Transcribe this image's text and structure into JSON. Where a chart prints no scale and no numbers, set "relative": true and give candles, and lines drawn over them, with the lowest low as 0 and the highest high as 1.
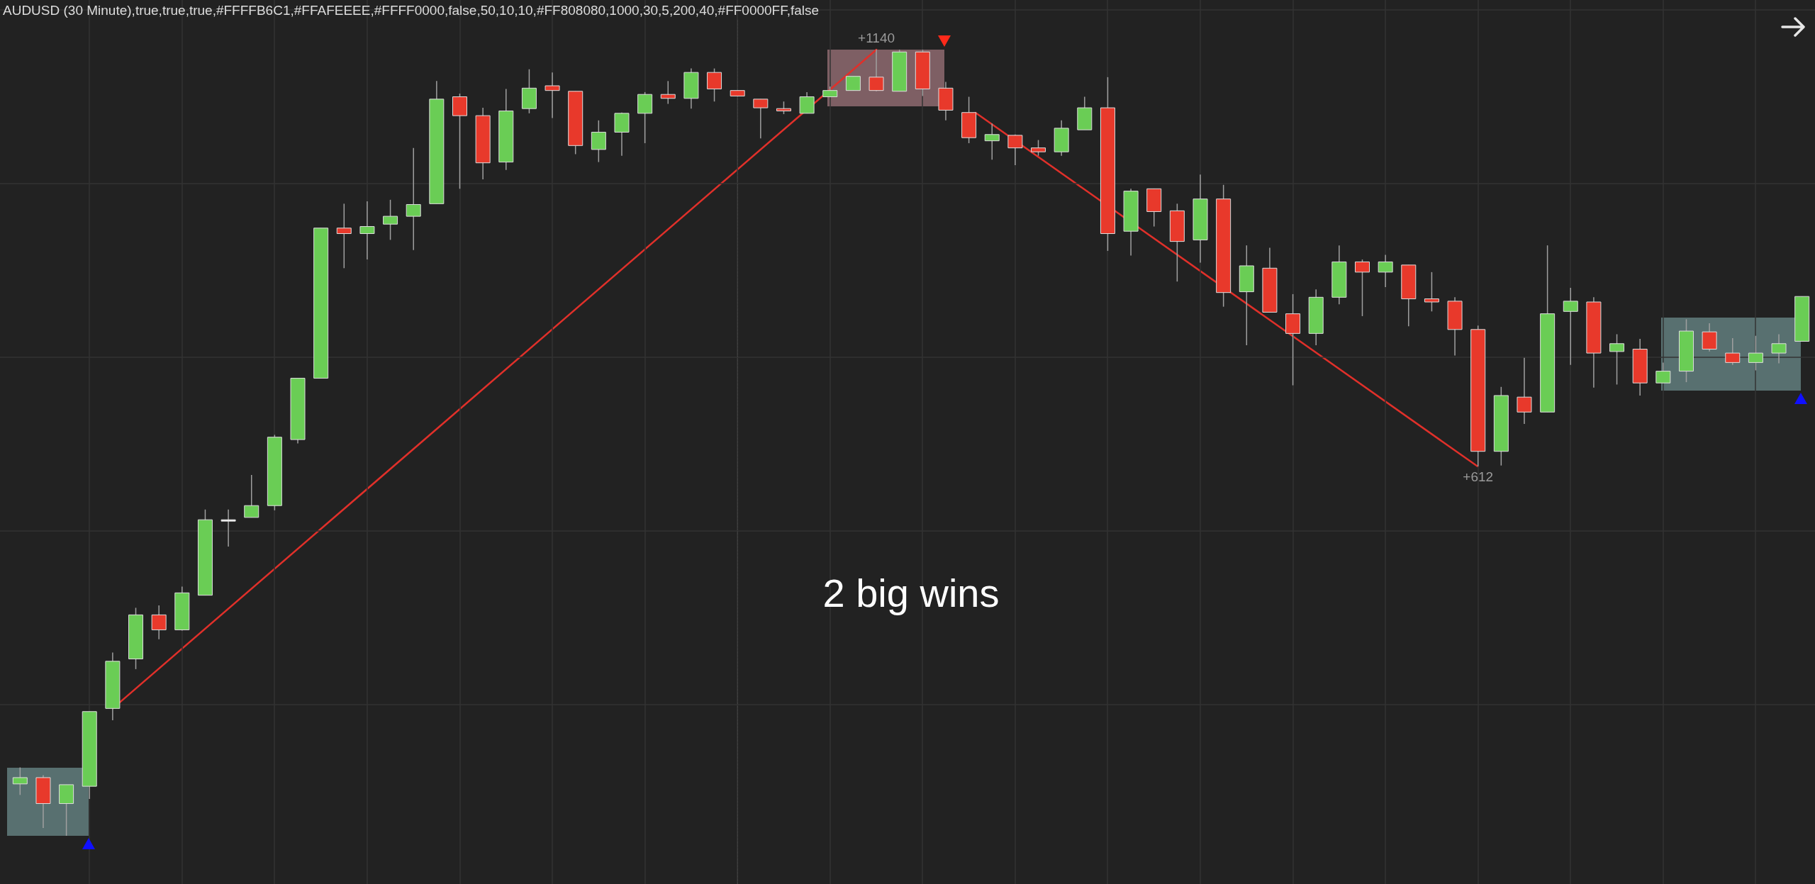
{
  "chart_data": {
    "type": "candlestick",
    "title": "AUDUSD (30 Minute),true,true,true,#FFFFB6C1,#FFAFEEEE,#FFFF0000,false,50,10,10,#FF808080,1000,30,5,200,40,#FF0000FF,false",
    "annotations": [
      "+1140",
      "+612",
      "2 big wins"
    ],
    "relative": true,
    "grid": true,
    "categories": [
      null,
      null,
      null,
      null,
      null,
      null,
      null,
      null,
      null,
      null,
      null,
      null,
      null,
      null,
      null,
      null,
      null,
      null,
      null,
      null,
      null,
      null,
      null,
      null,
      null,
      null,
      null,
      null,
      null,
      null,
      null,
      null,
      null,
      null,
      null,
      null,
      null,
      null,
      null,
      null,
      null,
      null,
      null,
      null,
      null,
      null,
      null,
      null,
      null,
      null,
      null,
      null,
      null,
      null,
      null,
      null,
      null,
      null,
      null,
      null,
      null,
      null,
      null,
      null,
      null,
      null,
      null,
      null,
      null,
      null,
      null,
      null,
      null,
      null,
      null,
      null,
      null,
      null
    ],
    "ohlc": [
      [
        0.066,
        0.087,
        0.052,
        0.074
      ],
      [
        0.074,
        0.077,
        0.01,
        0.041
      ],
      [
        0.041,
        0.065,
        0,
        0.065
      ],
      [
        0.063,
        0.158,
        0.047,
        0.158
      ],
      [
        0.162,
        0.233,
        0.147,
        0.222
      ],
      [
        0.225,
        0.29,
        0.212,
        0.281
      ],
      [
        0.281,
        0.293,
        0.25,
        0.262
      ],
      [
        0.262,
        0.317,
        0.261,
        0.309
      ],
      [
        0.306,
        0.415,
        0.306,
        0.402
      ],
      [
        0.402,
        0.415,
        0.368,
        0.402
      ],
      [
        0.405,
        0.459,
        0.405,
        0.42
      ],
      [
        0.42,
        0.51,
        0.414,
        0.507
      ],
      [
        0.504,
        0.582,
        0.499,
        0.582
      ],
      [
        0.582,
        0.773,
        0.582,
        0.773
      ],
      [
        0.773,
        0.804,
        0.722,
        0.766
      ],
      [
        0.766,
        0.807,
        0.733,
        0.775
      ],
      [
        0.778,
        0.809,
        0.758,
        0.788
      ],
      [
        0.788,
        0.875,
        0.745,
        0.803
      ],
      [
        0.804,
        0.96,
        0.804,
        0.937
      ],
      [
        0.94,
        0.944,
        0.823,
        0.916
      ],
      [
        0.916,
        0.926,
        0.835,
        0.856
      ],
      [
        0.857,
        0.95,
        0.847,
        0.922
      ],
      [
        0.925,
        0.975,
        0.919,
        0.951
      ],
      [
        0.954,
        0.971,
        0.913,
        0.948
      ],
      [
        0.947,
        0.947,
        0.867,
        0.878
      ],
      [
        0.873,
        0.91,
        0.857,
        0.895
      ],
      [
        0.895,
        0.92,
        0.865,
        0.919
      ],
      [
        0.919,
        0.946,
        0.881,
        0.943
      ],
      [
        0.943,
        0.96,
        0.931,
        0.938
      ],
      [
        0.938,
        0.976,
        0.925,
        0.971
      ],
      [
        0.971,
        0.976,
        0.934,
        0.95
      ],
      [
        0.948,
        0.948,
        0.941,
        0.941
      ],
      [
        0.937,
        0.937,
        0.887,
        0.926
      ],
      [
        0.925,
        0.934,
        0.918,
        0.922
      ],
      [
        0.919,
        0.946,
        0.919,
        0.94
      ],
      [
        0.94,
        0.953,
        0.94,
        0.948
      ],
      [
        0.948,
        0.966,
        0.948,
        0.966
      ],
      [
        0.965,
        1,
        0.947,
        0.948
      ],
      [
        0.947,
        1,
        0.947,
        0.997
      ],
      [
        0.997,
        1,
        0.941,
        0.95
      ],
      [
        0.951,
        0.959,
        0.91,
        0.923
      ],
      [
        0.92,
        0.94,
        0.881,
        0.888
      ],
      [
        0.884,
        0.906,
        0.86,
        0.892
      ],
      [
        0.891,
        0.892,
        0.853,
        0.875
      ],
      [
        0.875,
        0.885,
        0.865,
        0.87
      ],
      [
        0.87,
        0.91,
        0.865,
        0.9
      ],
      [
        0.898,
        0.94,
        0.898,
        0.926
      ],
      [
        0.926,
        0.965,
        0.744,
        0.766
      ],
      [
        0.769,
        0.823,
        0.738,
        0.82
      ],
      [
        0.823,
        0.823,
        0.775,
        0.794
      ],
      [
        0.795,
        0.804,
        0.705,
        0.756
      ],
      [
        0.758,
        0.841,
        0.729,
        0.81
      ],
      [
        0.81,
        0.828,
        0.673,
        0.691
      ],
      [
        0.692,
        0.751,
        0.624,
        0.725
      ],
      [
        0.722,
        0.748,
        0.666,
        0.666
      ],
      [
        0.664,
        0.689,
        0.573,
        0.639
      ],
      [
        0.639,
        0.695,
        0.624,
        0.685
      ],
      [
        0.685,
        0.751,
        0.676,
        0.73
      ],
      [
        0.73,
        0.733,
        0.661,
        0.717
      ],
      [
        0.717,
        0.739,
        0.698,
        0.73
      ],
      [
        0.726,
        0.726,
        0.648,
        0.683
      ],
      [
        0.683,
        0.717,
        0.667,
        0.679
      ],
      [
        0.68,
        0.685,
        0.611,
        0.644
      ],
      [
        0.644,
        0.649,
        0.47,
        0.489
      ],
      [
        0.489,
        0.571,
        0.471,
        0.56
      ],
      [
        0.558,
        0.608,
        0.524,
        0.539
      ],
      [
        0.539,
        0.751,
        0.539,
        0.664
      ],
      [
        0.667,
        0.697,
        0.599,
        0.68
      ],
      [
        0.679,
        0.685,
        0.57,
        0.614
      ],
      [
        0.616,
        0.638,
        0.574,
        0.626
      ],
      [
        0.619,
        0.632,
        0.56,
        0.576
      ],
      [
        0.576,
        0.602,
        0.576,
        0.591
      ],
      [
        0.591,
        0.657,
        0.577,
        0.642
      ],
      [
        0.641,
        0.652,
        0.616,
        0.619
      ],
      [
        0.614,
        0.633,
        0.599,
        0.602
      ],
      [
        0.602,
        0.636,
        0.592,
        0.614
      ],
      [
        0.614,
        0.638,
        0.601,
        0.626
      ],
      [
        0.629,
        0.686,
        0.629,
        0.686
      ]
    ],
    "colors": [
      "#6acd55",
      "#e8392b",
      "#6acd55",
      "#6acd55",
      "#6acd55",
      "#6acd55",
      "#e8392b",
      "#6acd55",
      "#6acd55",
      "#ffffff",
      "#6acd55",
      "#6acd55",
      "#6acd55",
      "#6acd55",
      "#e8392b",
      "#6acd55",
      "#6acd55",
      "#6acd55",
      "#6acd55",
      "#e8392b",
      "#e8392b",
      "#6acd55",
      "#6acd55",
      "#e8392b",
      "#e8392b",
      "#6acd55",
      "#6acd55",
      "#6acd55",
      "#e8392b",
      "#6acd55",
      "#e8392b",
      "#e8392b",
      "#e8392b",
      "#e8392b",
      "#6acd55",
      "#6acd55",
      "#6acd55",
      "#e8392b",
      "#6acd55",
      "#e8392b",
      "#e8392b",
      "#e8392b",
      "#6acd55",
      "#e8392b",
      "#e8392b",
      "#6acd55",
      "#6acd55",
      "#e8392b",
      "#6acd55",
      "#e8392b",
      "#e8392b",
      "#6acd55",
      "#e8392b",
      "#6acd55",
      "#e8392b",
      "#e8392b",
      "#6acd55",
      "#6acd55",
      "#e8392b",
      "#6acd55",
      "#e8392b",
      "#e8392b",
      "#e8392b",
      "#e8392b",
      "#6acd55",
      "#e8392b",
      "#6acd55",
      "#6acd55",
      "#e8392b",
      "#6acd55",
      "#e8392b",
      "#6acd55",
      "#6acd55",
      "#e8392b",
      "#e8392b",
      "#6acd55",
      "#6acd55",
      "#6acd55"
    ]
  }
}
